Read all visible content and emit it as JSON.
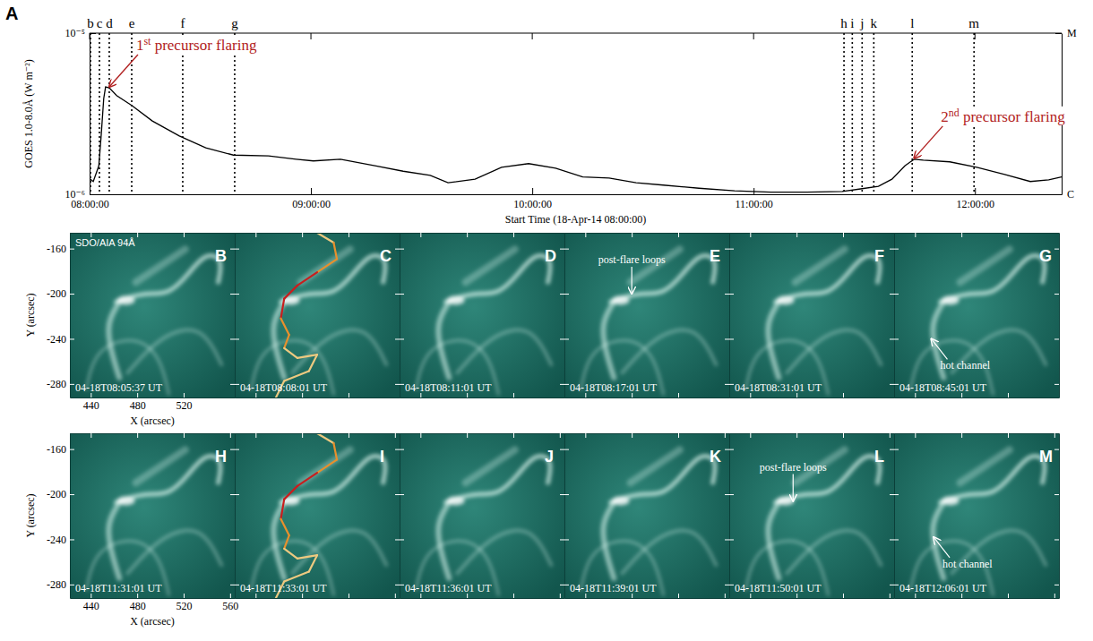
{
  "chart_data": {
    "type": "line",
    "panel_label": "A",
    "x_title": "Start Time (18-Apr-14 08:00:00)",
    "y_title": "GOES 1.0-8.0Å (W m⁻²)",
    "log": "y",
    "color": "#000000",
    "xlim": [
      "08:00:00",
      "12:23:30"
    ],
    "xticks": [
      "08:00:00",
      "09:00:00",
      "10:00:00",
      "11:00:00",
      "12:00:00"
    ],
    "ylim": [
      1e-06,
      1e-05
    ],
    "yticks": [
      {
        "value": 1e-06,
        "label": "10⁻⁶"
      },
      {
        "value": 1e-05,
        "label": "10⁻⁵"
      }
    ],
    "y2lim": [
      1e-06,
      1e-05
    ],
    "y2ticks": [
      {
        "value": 1e-06,
        "label": "C"
      },
      {
        "value": 1e-05,
        "label": "M"
      }
    ],
    "x": [
      "08:00:00",
      "08:01:00",
      "08:02:30",
      "08:03:10",
      "08:03:50",
      "08:04:20",
      "08:05:20",
      "08:07:20",
      "08:11:30",
      "08:17:00",
      "08:24:20",
      "08:31:30",
      "08:39:00",
      "08:48:30",
      "08:56:00",
      "09:00:40",
      "09:08:00",
      "09:17:40",
      "09:25:00",
      "09:32:20",
      "09:37:10",
      "09:44:30",
      "09:51:40",
      "09:59:00",
      "10:06:20",
      "10:13:40",
      "10:20:50",
      "10:28:10",
      "10:35:30",
      "10:45:10",
      "10:54:50",
      "11:04:40",
      "11:14:20",
      "11:24:00",
      "11:29:00",
      "11:33:50",
      "11:37:30",
      "11:41:00",
      "11:43:30",
      "11:46:00",
      "11:53:10",
      "12:00:30",
      "12:07:50",
      "12:15:00",
      "12:20:00",
      "12:23:30"
    ],
    "values": [
      1.25e-06,
      1.2e-06,
      1.5e-06,
      2.36e-06,
      3.93e-06,
      4.64e-06,
      4.58e-06,
      4.1e-06,
      3.55e-06,
      2.85e-06,
      2.3e-06,
      1.94e-06,
      1.75e-06,
      1.73e-06,
      1.65e-06,
      1.61e-06,
      1.65e-06,
      1.5e-06,
      1.39e-06,
      1.31e-06,
      1.18e-06,
      1.24e-06,
      1.47e-06,
      1.55e-06,
      1.45e-06,
      1.28e-06,
      1.26e-06,
      1.18e-06,
      1.14e-06,
      1.09e-06,
      1.05e-06,
      1.03e-06,
      1.03e-06,
      1.04e-06,
      1.08e-06,
      1.12e-06,
      1.24e-06,
      1.5e-06,
      1.65e-06,
      1.63e-06,
      1.59e-06,
      1.47e-06,
      1.33e-06,
      1.2e-06,
      1.23e-06,
      1.28e-06
    ],
    "events": [
      {
        "label": "b",
        "x": "08:00:15"
      },
      {
        "label": "c",
        "x": "08:02:40"
      },
      {
        "label": "d",
        "x": "08:05:20"
      },
      {
        "label": "e",
        "x": "08:11:25"
      },
      {
        "label": "f",
        "x": "08:25:15"
      },
      {
        "label": "g",
        "x": "08:39:20"
      },
      {
        "label": "h",
        "x": "11:24:30"
      },
      {
        "label": "i",
        "x": "11:26:45"
      },
      {
        "label": "j",
        "x": "11:29:25"
      },
      {
        "label": "k",
        "x": "11:32:35"
      },
      {
        "label": "l",
        "x": "11:43:00"
      },
      {
        "label": "m",
        "x": "11:59:45"
      }
    ],
    "annotations": [
      {
        "text": "1st precursor flaring",
        "x": "08:05:20",
        "y": 4.58e-06,
        "color": "#b22222"
      },
      {
        "text": "2nd precursor flaring",
        "x": "11:43:30",
        "y": 1.65e-06,
        "color": "#b22222"
      }
    ]
  },
  "images": {
    "instrument_label": "SDO/AIA 94Å",
    "xlabel": "X (arcsec)",
    "ylabel": "Y (arcsec)",
    "xlim": [
      422,
      564
    ],
    "ylim": [
      -292,
      -146
    ],
    "yticks": [
      -160,
      -200,
      -240,
      -280
    ],
    "rows": [
      {
        "xticks": [
          440,
          480,
          520
        ],
        "panels": [
          {
            "letter": "B",
            "time": "04-18T08:05:37 UT"
          },
          {
            "letter": "C",
            "time": "04-18T08:08:01 UT"
          },
          {
            "letter": "D",
            "time": "04-18T08:11:01 UT"
          },
          {
            "letter": "E",
            "time": "04-18T08:17:01 UT",
            "annotations": [
              {
                "text": "post-flare loops",
                "x": 480,
                "y": -200
              }
            ]
          },
          {
            "letter": "F",
            "time": "04-18T08:31:01 UT"
          },
          {
            "letter": "G",
            "time": "04-18T08:45:01 UT",
            "annotations": [
              {
                "text": "hot channel",
                "x": 454,
                "y": -240
              }
            ]
          }
        ]
      },
      {
        "xticks": [
          440,
          480,
          520,
          560
        ],
        "panels": [
          {
            "letter": "H",
            "time": "04-18T11:31:01 UT"
          },
          {
            "letter": "I",
            "time": "04-18T11:33:01 UT"
          },
          {
            "letter": "J",
            "time": "04-18T11:36:01 UT"
          },
          {
            "letter": "K",
            "time": "04-18T11:39:01 UT"
          },
          {
            "letter": "L",
            "time": "04-18T11:50:01 UT",
            "annotations": [
              {
                "text": "post-flare loops",
                "x": 477,
                "y": -206
              }
            ]
          },
          {
            "letter": "M",
            "time": "04-18T12:06:01 UT",
            "annotations": [
              {
                "text": "hot channel",
                "x": 456,
                "y": -238
              }
            ]
          }
        ]
      }
    ]
  }
}
